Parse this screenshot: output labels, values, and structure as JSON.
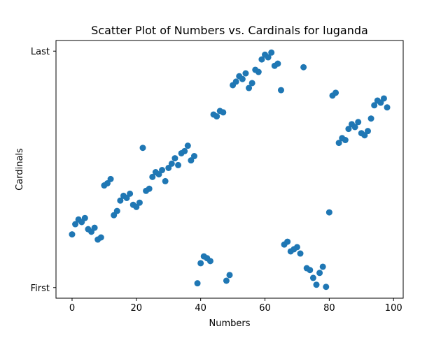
{
  "chart_data": {
    "type": "scatter",
    "title": "Scatter Plot of Numbers vs. Cardinals for luganda",
    "xlabel": "Numbers",
    "ylabel": "Cardinals",
    "xlim": [
      -5,
      103
    ],
    "ylim": [
      -0.045,
      1.045
    ],
    "x_ticks": [
      0,
      20,
      40,
      60,
      80,
      100
    ],
    "y_ticks": [
      {
        "value": 0,
        "label": "First"
      },
      {
        "value": 1,
        "label": "Last"
      }
    ],
    "grid": false,
    "marker_color": "#1f77b4",
    "series": [
      {
        "points": [
          {
            "x": 0,
            "y": 0.225
          },
          {
            "x": 1,
            "y": 0.268
          },
          {
            "x": 2,
            "y": 0.288
          },
          {
            "x": 3,
            "y": 0.277
          },
          {
            "x": 4,
            "y": 0.294
          },
          {
            "x": 5,
            "y": 0.247
          },
          {
            "x": 6,
            "y": 0.236
          },
          {
            "x": 7,
            "y": 0.253
          },
          {
            "x": 8,
            "y": 0.203
          },
          {
            "x": 9,
            "y": 0.212
          },
          {
            "x": 10,
            "y": 0.432
          },
          {
            "x": 11,
            "y": 0.441
          },
          {
            "x": 12,
            "y": 0.459
          },
          {
            "x": 13,
            "y": 0.306
          },
          {
            "x": 14,
            "y": 0.324
          },
          {
            "x": 15,
            "y": 0.368
          },
          {
            "x": 16,
            "y": 0.388
          },
          {
            "x": 17,
            "y": 0.379
          },
          {
            "x": 18,
            "y": 0.397
          },
          {
            "x": 19,
            "y": 0.35
          },
          {
            "x": 20,
            "y": 0.341
          },
          {
            "x": 21,
            "y": 0.359
          },
          {
            "x": 22,
            "y": 0.591
          },
          {
            "x": 23,
            "y": 0.409
          },
          {
            "x": 24,
            "y": 0.418
          },
          {
            "x": 25,
            "y": 0.468
          },
          {
            "x": 26,
            "y": 0.488
          },
          {
            "x": 27,
            "y": 0.479
          },
          {
            "x": 28,
            "y": 0.497
          },
          {
            "x": 29,
            "y": 0.45
          },
          {
            "x": 30,
            "y": 0.506
          },
          {
            "x": 31,
            "y": 0.524
          },
          {
            "x": 32,
            "y": 0.547
          },
          {
            "x": 33,
            "y": 0.518
          },
          {
            "x": 34,
            "y": 0.568
          },
          {
            "x": 35,
            "y": 0.577
          },
          {
            "x": 36,
            "y": 0.6
          },
          {
            "x": 37,
            "y": 0.538
          },
          {
            "x": 38,
            "y": 0.556
          },
          {
            "x": 39,
            "y": 0.018
          },
          {
            "x": 40,
            "y": 0.103
          },
          {
            "x": 41,
            "y": 0.132
          },
          {
            "x": 42,
            "y": 0.124
          },
          {
            "x": 43,
            "y": 0.112
          },
          {
            "x": 44,
            "y": 0.732
          },
          {
            "x": 45,
            "y": 0.724
          },
          {
            "x": 46,
            "y": 0.747
          },
          {
            "x": 47,
            "y": 0.741
          },
          {
            "x": 48,
            "y": 0.029
          },
          {
            "x": 49,
            "y": 0.053
          },
          {
            "x": 50,
            "y": 0.856
          },
          {
            "x": 51,
            "y": 0.871
          },
          {
            "x": 52,
            "y": 0.894
          },
          {
            "x": 53,
            "y": 0.882
          },
          {
            "x": 54,
            "y": 0.906
          },
          {
            "x": 55,
            "y": 0.844
          },
          {
            "x": 56,
            "y": 0.865
          },
          {
            "x": 57,
            "y": 0.921
          },
          {
            "x": 58,
            "y": 0.912
          },
          {
            "x": 59,
            "y": 0.965
          },
          {
            "x": 60,
            "y": 0.985
          },
          {
            "x": 61,
            "y": 0.974
          },
          {
            "x": 62,
            "y": 0.994
          },
          {
            "x": 63,
            "y": 0.938
          },
          {
            "x": 64,
            "y": 0.947
          },
          {
            "x": 65,
            "y": 0.835
          },
          {
            "x": 66,
            "y": 0.182
          },
          {
            "x": 67,
            "y": 0.194
          },
          {
            "x": 68,
            "y": 0.153
          },
          {
            "x": 69,
            "y": 0.162
          },
          {
            "x": 70,
            "y": 0.171
          },
          {
            "x": 71,
            "y": 0.144
          },
          {
            "x": 72,
            "y": 0.932
          },
          {
            "x": 73,
            "y": 0.082
          },
          {
            "x": 74,
            "y": 0.074
          },
          {
            "x": 75,
            "y": 0.041
          },
          {
            "x": 76,
            "y": 0.012
          },
          {
            "x": 77,
            "y": 0.062
          },
          {
            "x": 78,
            "y": 0.088
          },
          {
            "x": 79,
            "y": 0.003
          },
          {
            "x": 80,
            "y": 0.318
          },
          {
            "x": 81,
            "y": 0.812
          },
          {
            "x": 82,
            "y": 0.824
          },
          {
            "x": 83,
            "y": 0.612
          },
          {
            "x": 84,
            "y": 0.632
          },
          {
            "x": 85,
            "y": 0.624
          },
          {
            "x": 86,
            "y": 0.671
          },
          {
            "x": 87,
            "y": 0.691
          },
          {
            "x": 88,
            "y": 0.679
          },
          {
            "x": 89,
            "y": 0.7
          },
          {
            "x": 90,
            "y": 0.653
          },
          {
            "x": 91,
            "y": 0.644
          },
          {
            "x": 92,
            "y": 0.662
          },
          {
            "x": 93,
            "y": 0.715
          },
          {
            "x": 94,
            "y": 0.771
          },
          {
            "x": 95,
            "y": 0.791
          },
          {
            "x": 96,
            "y": 0.782
          },
          {
            "x": 97,
            "y": 0.8
          },
          {
            "x": 98,
            "y": 0.762
          }
        ]
      }
    ]
  }
}
